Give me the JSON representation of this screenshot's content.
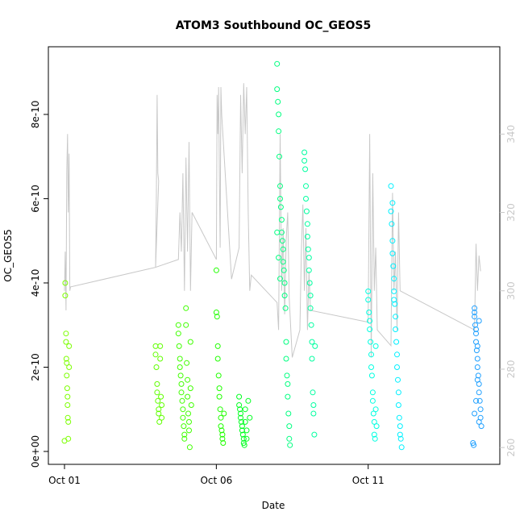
{
  "chart_data": {
    "type": "scatter",
    "title": "ATOM3 Southbound OC_GEOS5",
    "xlabel": "Date",
    "ylabel": "OC_GEOS5",
    "xlim": [
      0,
      27.5
    ],
    "ylim": [
      0,
      9.3e-10
    ],
    "y2lim": [
      259,
      359
    ],
    "grid": false,
    "x_ticks": [
      {
        "value": 0,
        "label": "Oct 01"
      },
      {
        "value": 10,
        "label": "Oct 06"
      },
      {
        "value": 20,
        "label": "Oct 11"
      }
    ],
    "y_ticks": [
      {
        "value": 0,
        "label": "0e+00"
      },
      {
        "value": 2e-10,
        "label": "2e-10"
      },
      {
        "value": 4e-10,
        "label": "4e-10"
      },
      {
        "value": 6e-10,
        "label": "6e-10"
      },
      {
        "value": 8e-10,
        "label": "8e-10"
      }
    ],
    "y2_ticks": [
      {
        "value": 260,
        "label": "260"
      },
      {
        "value": 280,
        "label": "280"
      },
      {
        "value": 300,
        "label": "300"
      },
      {
        "value": 320,
        "label": "320"
      },
      {
        "value": 340,
        "label": "340"
      }
    ],
    "secondary_series": {
      "color": "#c8c8c8",
      "points": [
        [
          0.0,
          300
        ],
        [
          0.05,
          310
        ],
        [
          0.1,
          295
        ],
        [
          0.15,
          330
        ],
        [
          0.2,
          340
        ],
        [
          0.25,
          320
        ],
        [
          0.3,
          335
        ],
        [
          0.35,
          300
        ],
        [
          0.4,
          301
        ],
        [
          6.0,
          306
        ],
        [
          6.05,
          325
        ],
        [
          6.1,
          350
        ],
        [
          6.15,
          330
        ],
        [
          6.2,
          328
        ],
        [
          6.0,
          306
        ],
        [
          7.5,
          308
        ],
        [
          7.6,
          320
        ],
        [
          7.7,
          310
        ],
        [
          7.8,
          330
        ],
        [
          7.9,
          300
        ],
        [
          8.0,
          334
        ],
        [
          8.1,
          310
        ],
        [
          8.2,
          338
        ],
        [
          8.3,
          300
        ],
        [
          8.4,
          320
        ],
        [
          10.0,
          308
        ],
        [
          10.05,
          350
        ],
        [
          10.1,
          340
        ],
        [
          10.15,
          352
        ],
        [
          10.2,
          330
        ],
        [
          10.25,
          311
        ],
        [
          10.3,
          352
        ],
        [
          10.35,
          345
        ],
        [
          11.0,
          303
        ],
        [
          11.5,
          311
        ],
        [
          11.6,
          350
        ],
        [
          11.7,
          330
        ],
        [
          11.8,
          353
        ],
        [
          11.9,
          340
        ],
        [
          12.0,
          352
        ],
        [
          12.1,
          320
        ],
        [
          12.2,
          300
        ],
        [
          12.3,
          304
        ],
        [
          14.0,
          297
        ],
        [
          14.1,
          290
        ],
        [
          14.2,
          340
        ],
        [
          14.3,
          300
        ],
        [
          14.4,
          316
        ],
        [
          14.5,
          294
        ],
        [
          14.6,
          313
        ],
        [
          14.7,
          320
        ],
        [
          14.8,
          298
        ],
        [
          15.0,
          283
        ],
        [
          15.5,
          290
        ],
        [
          15.6,
          310
        ],
        [
          15.7,
          322
        ],
        [
          15.8,
          300
        ],
        [
          15.9,
          316
        ],
        [
          16.0,
          290
        ],
        [
          16.1,
          305
        ],
        [
          16.2,
          295
        ],
        [
          20.0,
          292
        ],
        [
          20.1,
          340
        ],
        [
          20.2,
          283
        ],
        [
          20.3,
          330
        ],
        [
          20.4,
          300
        ],
        [
          20.5,
          311
        ],
        [
          20.6,
          290
        ],
        [
          21.5,
          286
        ],
        [
          21.6,
          325
        ],
        [
          21.7,
          300
        ],
        [
          21.8,
          310
        ],
        [
          21.9,
          290
        ],
        [
          22.0,
          320
        ],
        [
          22.1,
          300
        ],
        [
          27.0,
          290
        ],
        [
          27.1,
          312
        ],
        [
          27.2,
          300
        ],
        [
          27.3,
          309
        ],
        [
          27.4,
          305
        ]
      ]
    },
    "series": [
      {
        "name": "",
        "color": "#7cff00",
        "points": [
          [
            0.0,
            2.5e-11
          ],
          [
            0.05,
            4e-10
          ],
          [
            0.05,
            3.7e-10
          ],
          [
            0.1,
            2.8e-10
          ],
          [
            0.1,
            2.6e-10
          ],
          [
            0.12,
            2.2e-10
          ],
          [
            0.15,
            2.1e-10
          ],
          [
            0.15,
            1.8e-10
          ],
          [
            0.18,
            1.5e-10
          ],
          [
            0.2,
            1.3e-10
          ],
          [
            0.2,
            1.1e-10
          ],
          [
            0.22,
            8e-11
          ],
          [
            0.25,
            7e-11
          ],
          [
            0.25,
            3e-11
          ],
          [
            0.3,
            2.5e-10
          ],
          [
            0.3,
            2e-10
          ]
        ]
      },
      {
        "name": "",
        "color": "#60ff00",
        "points": [
          [
            6.0,
            2.5e-10
          ],
          [
            6.0,
            2.3e-10
          ],
          [
            6.05,
            2e-10
          ],
          [
            6.1,
            1.6e-10
          ],
          [
            6.1,
            1.4e-10
          ],
          [
            6.15,
            1.2e-10
          ],
          [
            6.2,
            1e-10
          ],
          [
            6.2,
            9e-11
          ],
          [
            6.25,
            7e-11
          ],
          [
            6.3,
            2.5e-10
          ],
          [
            6.3,
            2.2e-10
          ],
          [
            6.35,
            1.3e-10
          ],
          [
            6.4,
            1.1e-10
          ],
          [
            6.4,
            8e-11
          ]
        ]
      },
      {
        "name": "",
        "color": "#40ff00",
        "points": [
          [
            7.5,
            3e-10
          ],
          [
            7.5,
            2.8e-10
          ],
          [
            7.55,
            2.5e-10
          ],
          [
            7.6,
            2.2e-10
          ],
          [
            7.6,
            2e-10
          ],
          [
            7.65,
            1.8e-10
          ],
          [
            7.7,
            1.6e-10
          ],
          [
            7.7,
            1.4e-10
          ],
          [
            7.75,
            1.2e-10
          ],
          [
            7.8,
            1e-10
          ],
          [
            7.8,
            8e-11
          ],
          [
            7.85,
            6e-11
          ],
          [
            7.9,
            4e-11
          ],
          [
            7.9,
            3e-11
          ],
          [
            8.0,
            3.4e-10
          ],
          [
            8.0,
            3e-10
          ],
          [
            8.05,
            2.1e-10
          ],
          [
            8.1,
            1.7e-10
          ],
          [
            8.1,
            1.3e-10
          ],
          [
            8.15,
            9e-11
          ],
          [
            8.2,
            7e-11
          ],
          [
            8.2,
            5e-11
          ],
          [
            8.25,
            1e-11
          ],
          [
            8.3,
            2.6e-10
          ],
          [
            8.3,
            1.5e-10
          ],
          [
            8.35,
            1.1e-10
          ]
        ]
      },
      {
        "name": "",
        "color": "#20ff00",
        "points": [
          [
            10.0,
            4.3e-10
          ],
          [
            10.0,
            3.3e-10
          ],
          [
            10.05,
            3.2e-10
          ],
          [
            10.1,
            2.5e-10
          ],
          [
            10.1,
            2.2e-10
          ],
          [
            10.15,
            1.8e-10
          ],
          [
            10.2,
            1.5e-10
          ],
          [
            10.2,
            1.3e-10
          ],
          [
            10.25,
            1e-10
          ],
          [
            10.3,
            8e-11
          ],
          [
            10.3,
            6e-11
          ],
          [
            10.35,
            5e-11
          ],
          [
            10.4,
            4e-11
          ],
          [
            10.4,
            3e-11
          ],
          [
            10.45,
            2e-11
          ],
          [
            10.5,
            9e-11
          ]
        ]
      },
      {
        "name": "",
        "color": "#00ff20",
        "points": [
          [
            11.5,
            1.3e-10
          ],
          [
            11.5,
            1.1e-10
          ],
          [
            11.55,
            1e-10
          ],
          [
            11.6,
            9e-11
          ],
          [
            11.6,
            8e-11
          ],
          [
            11.65,
            7e-11
          ],
          [
            11.7,
            6e-11
          ],
          [
            11.7,
            5e-11
          ],
          [
            11.75,
            4e-11
          ],
          [
            11.8,
            3e-11
          ],
          [
            11.8,
            2e-11
          ],
          [
            11.85,
            1.5e-11
          ],
          [
            11.9,
            1e-10
          ],
          [
            11.9,
            7e-11
          ],
          [
            12.0,
            5e-11
          ],
          [
            12.0,
            3e-11
          ],
          [
            12.1,
            1.2e-10
          ],
          [
            12.2,
            8e-11
          ]
        ]
      },
      {
        "name": "",
        "color": "#00ff80",
        "points": [
          [
            14.0,
            9.2e-10
          ],
          [
            14.0,
            8.6e-10
          ],
          [
            14.05,
            8.3e-10
          ],
          [
            14.1,
            8e-10
          ],
          [
            14.1,
            7.6e-10
          ],
          [
            14.15,
            7e-10
          ],
          [
            14.2,
            6.3e-10
          ],
          [
            14.2,
            6e-10
          ],
          [
            14.25,
            5.8e-10
          ],
          [
            14.3,
            5.5e-10
          ],
          [
            14.3,
            5.2e-10
          ],
          [
            14.35,
            5e-10
          ],
          [
            14.4,
            4.8e-10
          ],
          [
            14.4,
            4.5e-10
          ],
          [
            14.45,
            4.3e-10
          ],
          [
            14.5,
            4e-10
          ],
          [
            14.5,
            3.7e-10
          ],
          [
            14.55,
            3.4e-10
          ],
          [
            14.6,
            2.6e-10
          ],
          [
            14.6,
            2.2e-10
          ],
          [
            14.65,
            1.8e-10
          ],
          [
            14.7,
            1.6e-10
          ],
          [
            14.7,
            1.3e-10
          ],
          [
            14.75,
            9e-11
          ],
          [
            14.8,
            6e-11
          ],
          [
            14.8,
            3e-11
          ],
          [
            14.85,
            1.5e-11
          ],
          [
            14.0,
            5.2e-10
          ],
          [
            14.1,
            4.6e-10
          ],
          [
            14.2,
            4.1e-10
          ]
        ]
      },
      {
        "name": "",
        "color": "#00ffa0",
        "points": [
          [
            15.8,
            7.1e-10
          ],
          [
            15.8,
            6.9e-10
          ],
          [
            15.85,
            6.7e-10
          ],
          [
            15.9,
            6.3e-10
          ],
          [
            15.9,
            6e-10
          ],
          [
            15.95,
            5.7e-10
          ],
          [
            16.0,
            5.4e-10
          ],
          [
            16.0,
            5.1e-10
          ],
          [
            16.05,
            4.8e-10
          ],
          [
            16.1,
            4.6e-10
          ],
          [
            16.1,
            4.3e-10
          ],
          [
            16.15,
            4e-10
          ],
          [
            16.2,
            3.7e-10
          ],
          [
            16.2,
            3.4e-10
          ],
          [
            16.25,
            3e-10
          ],
          [
            16.3,
            2.6e-10
          ],
          [
            16.3,
            2.2e-10
          ],
          [
            16.35,
            1.4e-10
          ],
          [
            16.4,
            1.1e-10
          ],
          [
            16.4,
            9e-11
          ],
          [
            16.45,
            4e-11
          ],
          [
            16.5,
            2.5e-10
          ]
        ]
      },
      {
        "name": "",
        "color": "#00ffe0",
        "points": [
          [
            20.0,
            3.8e-10
          ],
          [
            20.0,
            3.6e-10
          ],
          [
            20.05,
            3.3e-10
          ],
          [
            20.1,
            3.1e-10
          ],
          [
            20.1,
            2.9e-10
          ],
          [
            20.15,
            2.6e-10
          ],
          [
            20.2,
            2.3e-10
          ],
          [
            20.2,
            2e-10
          ],
          [
            20.25,
            1.8e-10
          ],
          [
            20.3,
            1.4e-10
          ],
          [
            20.3,
            1.2e-10
          ],
          [
            20.35,
            9e-11
          ],
          [
            20.4,
            7e-11
          ],
          [
            20.4,
            4e-11
          ],
          [
            20.45,
            3e-11
          ],
          [
            20.5,
            2.5e-10
          ],
          [
            20.5,
            1e-10
          ],
          [
            20.55,
            6e-11
          ]
        ]
      },
      {
        "name": "",
        "color": "#00f0ff",
        "points": [
          [
            21.5,
            6.3e-10
          ],
          [
            21.5,
            5.7e-10
          ],
          [
            21.55,
            5.4e-10
          ],
          [
            21.6,
            5e-10
          ],
          [
            21.6,
            4.7e-10
          ],
          [
            21.65,
            4.4e-10
          ],
          [
            21.7,
            4.1e-10
          ],
          [
            21.7,
            3.8e-10
          ],
          [
            21.75,
            3.5e-10
          ],
          [
            21.8,
            3.2e-10
          ],
          [
            21.8,
            2.9e-10
          ],
          [
            21.85,
            2.6e-10
          ],
          [
            21.9,
            2.3e-10
          ],
          [
            21.9,
            2e-10
          ],
          [
            21.95,
            1.7e-10
          ],
          [
            22.0,
            1.4e-10
          ],
          [
            22.0,
            1.1e-10
          ],
          [
            22.05,
            8e-11
          ],
          [
            22.1,
            6e-11
          ],
          [
            22.1,
            4e-11
          ],
          [
            22.15,
            3e-11
          ],
          [
            22.2,
            1e-11
          ],
          [
            21.6,
            5.9e-10
          ],
          [
            21.7,
            3.6e-10
          ]
        ]
      },
      {
        "name": "",
        "color": "#20a0ff",
        "points": [
          [
            27.0,
            3.4e-10
          ],
          [
            27.0,
            3.2e-10
          ],
          [
            27.05,
            3e-10
          ],
          [
            27.1,
            2.8e-10
          ],
          [
            27.1,
            2.6e-10
          ],
          [
            27.15,
            2.4e-10
          ],
          [
            27.2,
            2.2e-10
          ],
          [
            27.2,
            2e-10
          ],
          [
            27.25,
            1.8e-10
          ],
          [
            27.3,
            1.6e-10
          ],
          [
            27.3,
            1.4e-10
          ],
          [
            27.35,
            1.2e-10
          ],
          [
            27.4,
            1e-10
          ],
          [
            27.4,
            8e-11
          ],
          [
            27.45,
            6e-11
          ],
          [
            27.0,
            3.3e-10
          ],
          [
            27.1,
            2.9e-10
          ],
          [
            27.2,
            1.7e-10
          ],
          [
            27.3,
            7e-11
          ],
          [
            26.9,
            2e-11
          ],
          [
            26.95,
            1.5e-11
          ],
          [
            27.0,
            9e-11
          ],
          [
            27.1,
            1.2e-10
          ],
          [
            27.2,
            2.5e-10
          ],
          [
            27.3,
            3.1e-10
          ]
        ]
      }
    ]
  }
}
